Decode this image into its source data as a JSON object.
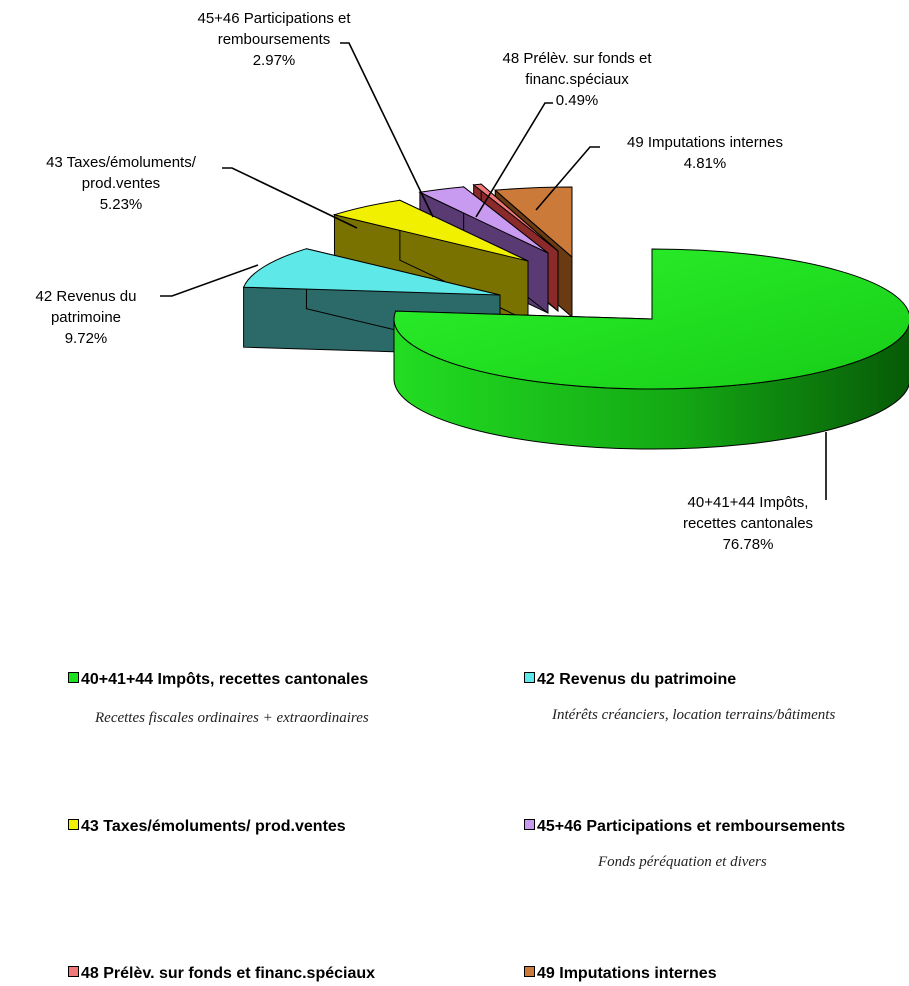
{
  "chart_data": {
    "type": "pie",
    "style": "3d-exploded",
    "series": [
      {
        "label_lines": [
          "40+41+44  Impôts,",
          "recettes cantonales"
        ],
        "value_text": "76.78%",
        "value": 76.78,
        "color": "#1ee01e"
      },
      {
        "label_lines": [
          "42  Revenus du",
          "patrimoine"
        ],
        "value_text": "9.72%",
        "value": 9.72,
        "color": "#5ee8e8"
      },
      {
        "label_lines": [
          "43  Taxes/émoluments/",
          "prod.ventes"
        ],
        "value_text": "5.23%",
        "value": 5.23,
        "color": "#f0f000"
      },
      {
        "label_lines": [
          "45+46  Participations et",
          "remboursements"
        ],
        "value_text": "2.97%",
        "value": 2.97,
        "color": "#c89af0"
      },
      {
        "label_lines": [
          "48  Prélèv. sur fonds et",
          "financ.spéciaux"
        ],
        "value_text": "0.49%",
        "value": 0.49,
        "color": "#f07878"
      },
      {
        "label_lines": [
          "49  Imputations internes"
        ],
        "value_text": "4.81%",
        "value": 4.81,
        "color": "#cc7a3a"
      }
    ]
  },
  "legend": {
    "items": [
      {
        "label": "40+41+44  Impôts, recettes cantonales",
        "description": "Recettes fiscales ordinaires + extraordinaires",
        "color": "#1ee01e"
      },
      {
        "label": "42  Revenus du patrimoine",
        "description": "Intérêts créanciers, location terrains/bâtiments",
        "color": "#5ee8e8"
      },
      {
        "label": "43  Taxes/émoluments/ prod.ventes",
        "description": "",
        "color": "#f0f000"
      },
      {
        "label": "45+46  Participations et remboursements",
        "description": "Fonds péréquation et divers",
        "color": "#c89af0"
      },
      {
        "label": "48  Prélèv. sur fonds et financ.spéciaux",
        "description": "",
        "color": "#f07878"
      },
      {
        "label": "49  Imputations internes",
        "description": "",
        "color": "#cc7a3a"
      }
    ]
  }
}
